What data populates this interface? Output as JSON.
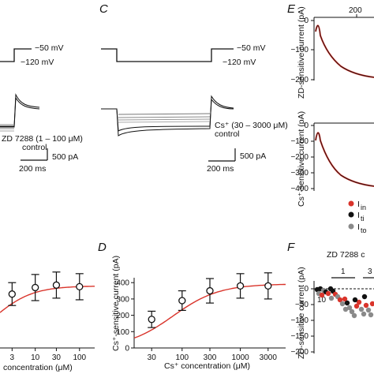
{
  "panels": {
    "c": "C",
    "d": "D",
    "e": "E",
    "f": "F"
  },
  "panel_b": {
    "voltage_top": "−50 mV",
    "voltage_bottom": "−120 mV",
    "drug_label": "ZD 7288 (1 – 100 μM)",
    "control_label": "control",
    "scale_current": "500 pA",
    "scale_time": "200 ms"
  },
  "panel_c": {
    "voltage_top": "−50 mV",
    "voltage_bottom": "−120 mV",
    "drug_label": "Cs⁺ (30 – 3000 μM)",
    "control_label": "control",
    "scale_current": "500 pA",
    "scale_time": "200 ms"
  },
  "panel_e": {
    "x_tick": "200",
    "ylabel_top": "ZD-sensitive current (pA)",
    "ylabel_bottom": "Cs⁺-sensitive current (pA)",
    "top_yticks": [
      "0",
      "−100",
      "−200"
    ],
    "bottom_yticks": [
      "0",
      "−100",
      "−200",
      "−300",
      "−400"
    ],
    "legend": [
      {
        "label": "I",
        "sub": "in",
        "color": "#d9342b"
      },
      {
        "label": "I",
        "sub": "ti",
        "color": "#111111"
      },
      {
        "label": "I",
        "sub": "to",
        "color": "#8a8a8a"
      }
    ]
  },
  "panel_f": {
    "ylabel": "ZD-sensitive current (pA)",
    "title": "ZD 7288 c",
    "conc_labels": [
      "1",
      "3",
      "10"
    ],
    "yticks": [
      "0",
      "−50",
      "−100",
      "−150",
      "−200"
    ]
  },
  "chart_data": [
    {
      "type": "scatter",
      "panel": "B-bottom",
      "xlabel": "concentration (μM)",
      "ylabel": "",
      "x_ticks": [
        "3",
        "10",
        "30",
        "100"
      ],
      "x": [
        3,
        10,
        30,
        100
      ],
      "y": [
        330,
        370,
        385,
        375
      ],
      "error": [
        70,
        80,
        80,
        80
      ],
      "fit_color": "#d9342b"
    },
    {
      "type": "scatter",
      "panel": "D",
      "title": "",
      "xlabel": "Cs⁺ concentration (μM)",
      "ylabel": "Cs⁺-sensitive current (pA)",
      "x_ticks": [
        "30",
        "100",
        "300",
        "1000",
        "3000"
      ],
      "y_ticks": [
        "0",
        "100",
        "200",
        "300",
        "400"
      ],
      "ylim": [
        0,
        400
      ],
      "x": [
        30,
        100,
        300,
        1000,
        3000
      ],
      "y": [
        175,
        290,
        350,
        380,
        380
      ],
      "error": [
        50,
        60,
        75,
        75,
        80
      ],
      "fit_color": "#d9342b"
    }
  ]
}
